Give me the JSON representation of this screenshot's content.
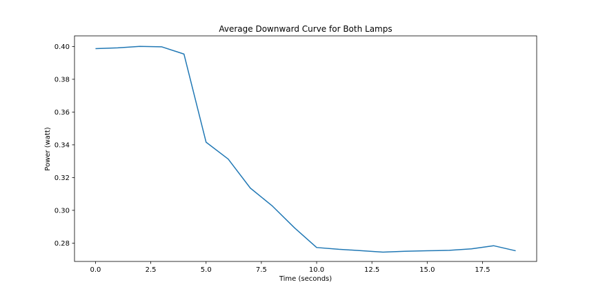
{
  "chart_data": {
    "type": "line",
    "title": "Average Downward Curve for Both Lamps",
    "xlabel": "Time (seconds)",
    "ylabel": "Power (watt)",
    "xlim": [
      -0.95,
      19.95
    ],
    "ylim": [
      0.2688,
      0.4065
    ],
    "xticks": [
      "0.0",
      "2.5",
      "5.0",
      "7.5",
      "10.0",
      "12.5",
      "15.0",
      "17.5"
    ],
    "xtick_values": [
      0,
      2.5,
      5,
      7.5,
      10,
      12.5,
      15,
      17.5
    ],
    "yticks": [
      "0.28",
      "0.30",
      "0.32",
      "0.34",
      "0.36",
      "0.38",
      "0.40"
    ],
    "ytick_values": [
      0.28,
      0.3,
      0.32,
      0.34,
      0.36,
      0.38,
      0.4
    ],
    "grid": false,
    "series": [
      {
        "color": "#1f77b4",
        "x": [
          0,
          1,
          2,
          3,
          4,
          5,
          6,
          7,
          8,
          9,
          10,
          11,
          12,
          13,
          14,
          15,
          16,
          17,
          18,
          19
        ],
        "y": [
          0.3987,
          0.3992,
          0.4001,
          0.3998,
          0.3954,
          0.3416,
          0.3313,
          0.3136,
          0.3026,
          0.2893,
          0.2773,
          0.2762,
          0.2754,
          0.2745,
          0.275,
          0.2753,
          0.2756,
          0.2765,
          0.2784,
          0.2753
        ]
      }
    ]
  }
}
